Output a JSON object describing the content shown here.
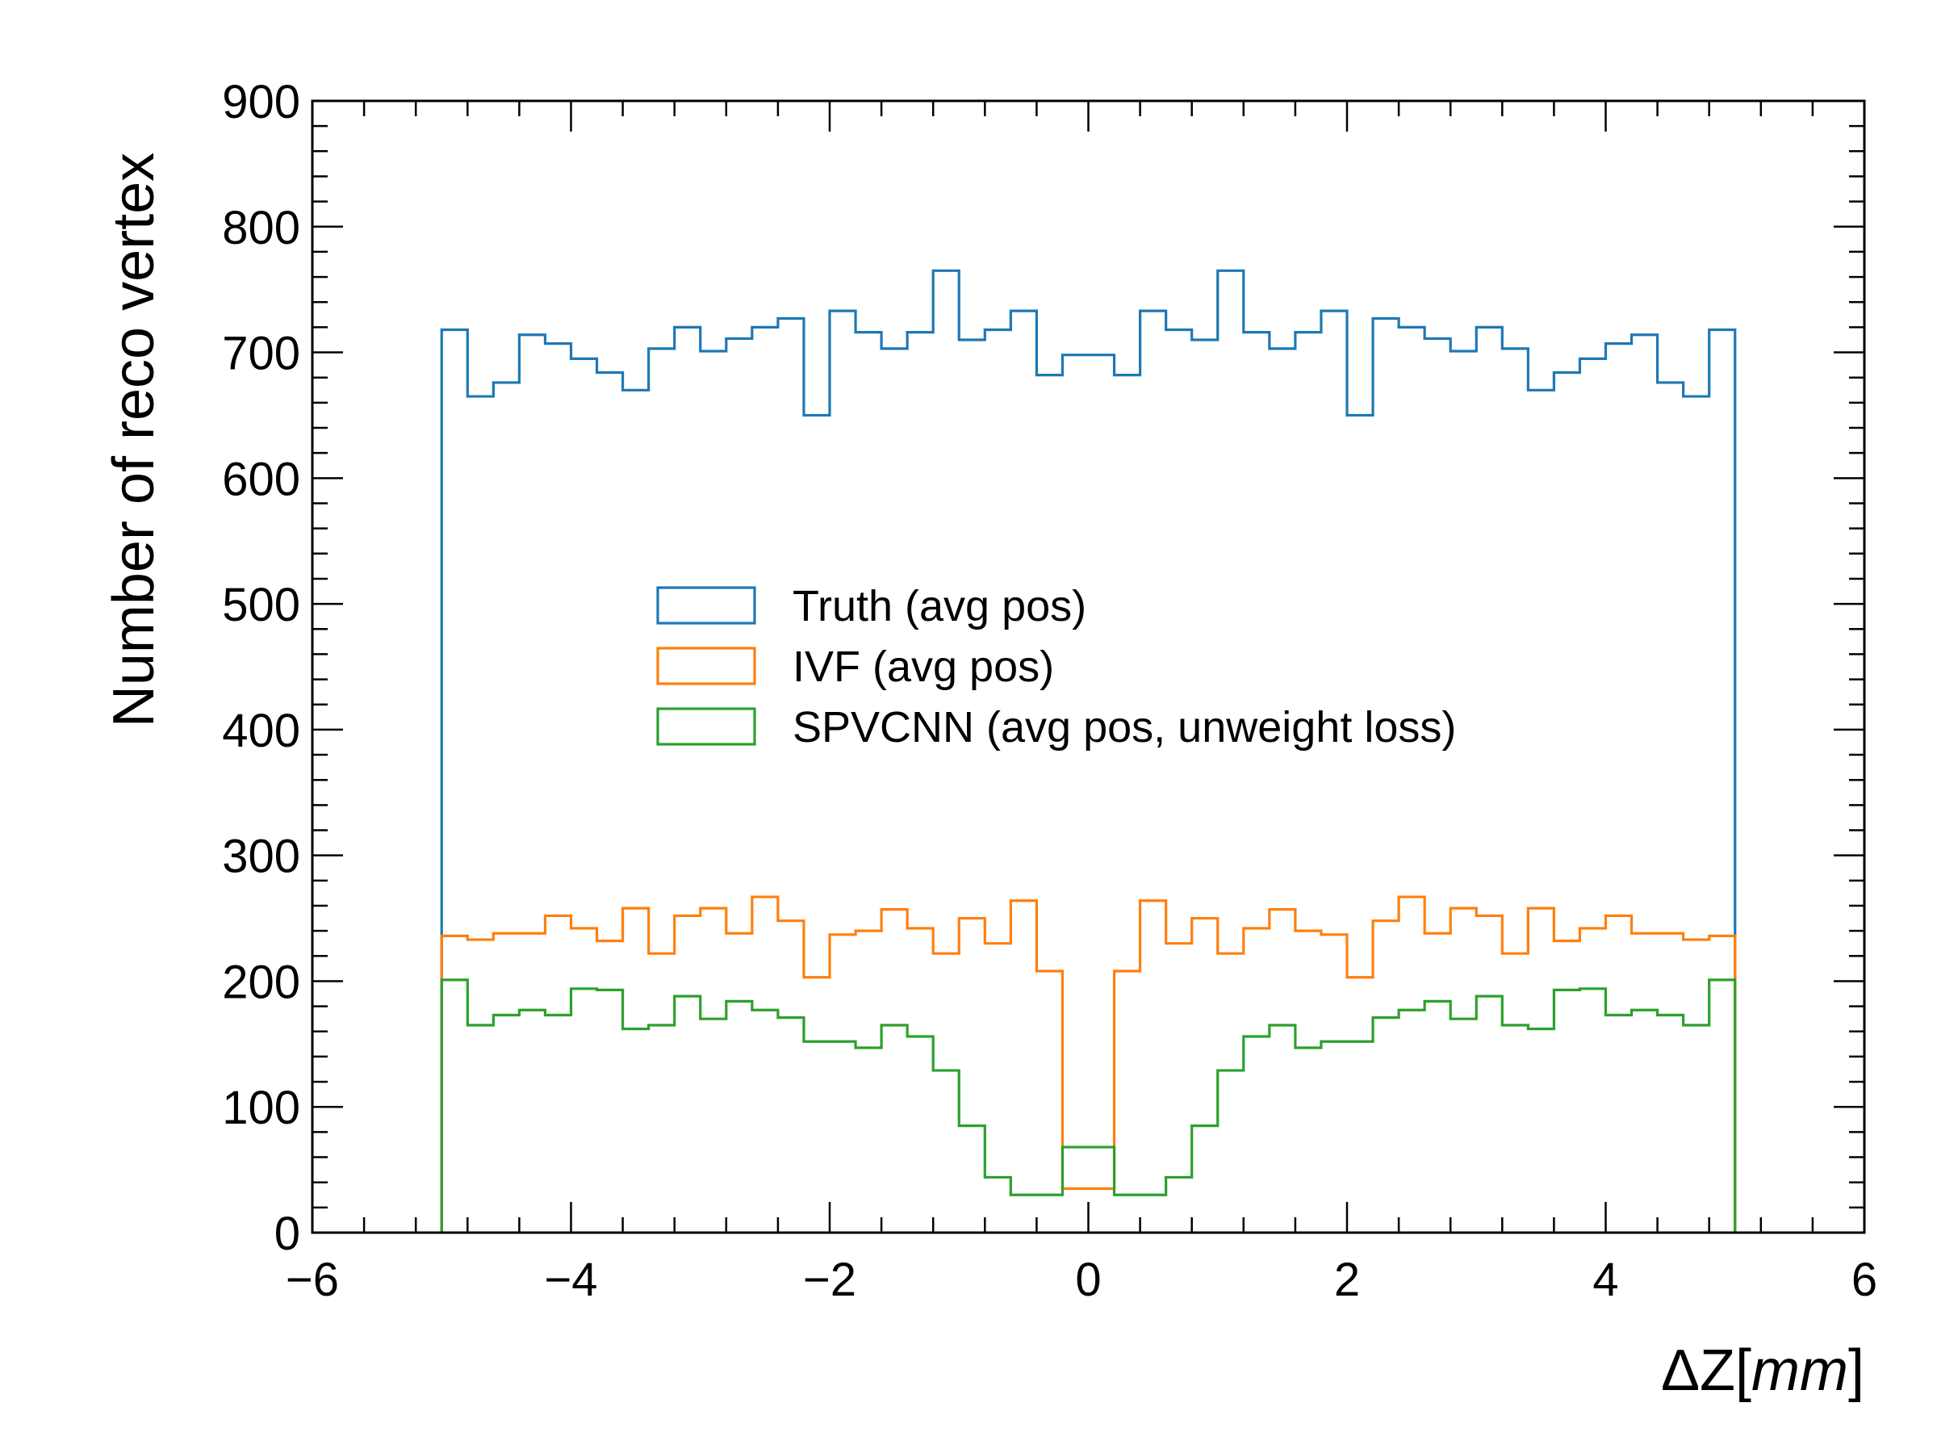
{
  "chart_data": {
    "type": "histogram",
    "title": "",
    "xlabel_prefix": "ΔZ",
    "xlabel_unit": "mm",
    "ylabel": "Number of reco vertex",
    "xlim": [
      -6,
      6
    ],
    "ylim": [
      0,
      900
    ],
    "x_ticks": [
      "−6",
      "−4",
      "−2",
      "0",
      "2",
      "4",
      "6"
    ],
    "y_ticks": [
      "0",
      "100",
      "200",
      "300",
      "400",
      "500",
      "600",
      "700",
      "800",
      "900"
    ],
    "bin_range": [
      -5,
      5
    ],
    "bin_count": 50,
    "legend_position": "center",
    "series": [
      {
        "name": "Truth (avg pos)",
        "color": "#1f77b4",
        "values": [
          718,
          665,
          676,
          714,
          707,
          695,
          684,
          670,
          703,
          720,
          701,
          711,
          720,
          727,
          650,
          733,
          716,
          703,
          716,
          765,
          710,
          718,
          733,
          682,
          698,
          698,
          682,
          733,
          718,
          710,
          765,
          716,
          703,
          716,
          733,
          650,
          727,
          720,
          711,
          701,
          720,
          703,
          670,
          684,
          695,
          707,
          714,
          676,
          665,
          718
        ]
      },
      {
        "name": "IVF (avg pos)",
        "color": "#ff7f0e",
        "values": [
          236,
          233,
          238,
          238,
          252,
          242,
          232,
          258,
          222,
          252,
          258,
          238,
          267,
          248,
          203,
          237,
          240,
          257,
          242,
          222,
          250,
          230,
          264,
          208,
          35,
          35,
          208,
          264,
          230,
          250,
          222,
          242,
          257,
          240,
          237,
          203,
          248,
          267,
          238,
          258,
          252,
          222,
          258,
          232,
          242,
          252,
          238,
          238,
          233,
          236
        ]
      },
      {
        "name": "SPVCNN (avg pos, unweight loss)",
        "color": "#2ca02c",
        "values": [
          201,
          165,
          173,
          177,
          173,
          194,
          193,
          162,
          165,
          188,
          170,
          184,
          177,
          171,
          152,
          152,
          147,
          165,
          156,
          129,
          85,
          44,
          30,
          30,
          68,
          68,
          30,
          30,
          44,
          85,
          129,
          156,
          165,
          147,
          152,
          152,
          171,
          177,
          184,
          170,
          188,
          165,
          162,
          193,
          194,
          173,
          177,
          173,
          165,
          201
        ]
      }
    ]
  }
}
